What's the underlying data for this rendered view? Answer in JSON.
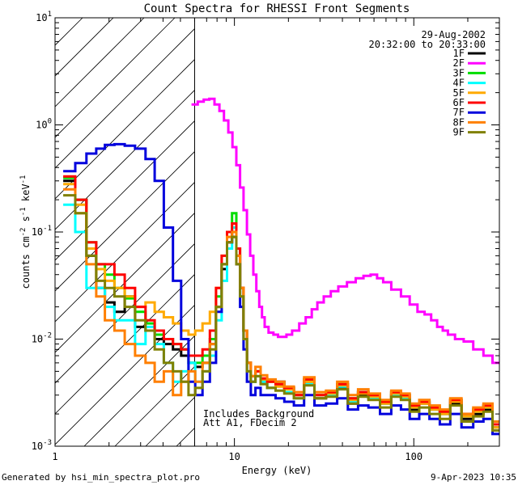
{
  "chart_data": {
    "type": "line",
    "title": "Count Spectra for RHESSI Front Segments",
    "xlabel": "Energy (keV)",
    "ylabel": "counts cm^-2 s^-1 keV^-1",
    "ylabel_parts": {
      "base": "counts cm",
      "exp1": "-2",
      "mid1": " s",
      "exp2": "-1",
      "mid2": " keV",
      "exp3": "-1"
    },
    "x_scale": "log",
    "y_scale": "log",
    "xlim": [
      1,
      300
    ],
    "ylim": [
      0.001,
      10
    ],
    "x_tick_labels": [
      "1",
      "10",
      "100"
    ],
    "y_tick_labels": [
      {
        "base": "10",
        "exp": "-3"
      },
      {
        "base": "10",
        "exp": "-2"
      },
      {
        "base": "10",
        "exp": "-1"
      },
      {
        "base": "10",
        "exp": "0"
      },
      {
        "base": "10",
        "exp": "1"
      }
    ],
    "date": "29-Aug-2002",
    "time_range": "20:32:00 to 20:33:00",
    "annotation_lines": [
      "Includes Background",
      "Att A1, FDecim 2"
    ],
    "hatched_below_keV": 6,
    "footer_left": "Generated by hsi_min_spectra_plot.pro",
    "footer_right": "9-Apr-2023 10:35",
    "legend_placement": "top-right",
    "series": [
      {
        "name": "1F",
        "color": "#000000",
        "x": [
          1.2,
          1.4,
          1.6,
          1.8,
          2.0,
          2.3,
          2.6,
          3.0,
          3.4,
          3.8,
          4.3,
          4.8,
          5.3,
          5.8,
          6.3,
          7.0,
          7.6,
          8.2,
          8.8,
          9.4,
          10.0,
          10.5,
          11.0,
          11.5,
          12.0,
          12.7,
          13.5,
          14.5,
          16,
          18,
          20,
          23,
          26,
          30,
          35,
          40,
          46,
          52,
          60,
          70,
          80,
          90,
          100,
          115,
          130,
          150,
          170,
          200,
          230,
          260,
          290
        ],
        "y": [
          0.3,
          0.2,
          0.06,
          0.03,
          0.022,
          0.018,
          0.025,
          0.013,
          0.012,
          0.01,
          0.009,
          0.008,
          0.007,
          0.006,
          0.0055,
          0.006,
          0.009,
          0.02,
          0.045,
          0.08,
          0.09,
          0.06,
          0.03,
          0.012,
          0.006,
          0.004,
          0.005,
          0.004,
          0.0035,
          0.004,
          0.0035,
          0.003,
          0.004,
          0.0028,
          0.003,
          0.0035,
          0.0025,
          0.003,
          0.0028,
          0.0025,
          0.003,
          0.0028,
          0.0022,
          0.0025,
          0.0022,
          0.002,
          0.0025,
          0.0018,
          0.002,
          0.0022,
          0.0015
        ]
      },
      {
        "name": "2F",
        "color": "#ff00ff",
        "x": [
          6.0,
          6.5,
          7.0,
          7.5,
          8.0,
          8.5,
          9.0,
          9.5,
          10.0,
          10.5,
          11.0,
          11.5,
          12.0,
          12.5,
          13.0,
          13.5,
          14.0,
          14.5,
          15.0,
          16.0,
          17.0,
          18.0,
          19.0,
          20.0,
          22,
          24,
          26,
          28,
          30,
          33,
          36,
          40,
          45,
          50,
          55,
          60,
          65,
          70,
          80,
          90,
          100,
          110,
          120,
          130,
          140,
          150,
          160,
          180,
          200,
          230,
          260,
          290
        ],
        "y": [
          1.55,
          1.65,
          1.72,
          1.75,
          1.55,
          1.35,
          1.1,
          0.85,
          0.62,
          0.42,
          0.26,
          0.16,
          0.095,
          0.06,
          0.04,
          0.028,
          0.02,
          0.016,
          0.013,
          0.0115,
          0.011,
          0.0105,
          0.0105,
          0.011,
          0.012,
          0.014,
          0.016,
          0.019,
          0.022,
          0.025,
          0.028,
          0.031,
          0.034,
          0.037,
          0.039,
          0.04,
          0.037,
          0.034,
          0.029,
          0.025,
          0.021,
          0.018,
          0.017,
          0.015,
          0.013,
          0.012,
          0.011,
          0.01,
          0.0095,
          0.008,
          0.007,
          0.006
        ]
      },
      {
        "name": "3F",
        "color": "#00dd00",
        "x": [
          1.2,
          1.4,
          1.6,
          1.8,
          2.0,
          2.3,
          2.6,
          3.0,
          3.4,
          3.8,
          4.3,
          4.8,
          5.3,
          5.8,
          6.3,
          7.0,
          7.6,
          8.2,
          8.8,
          9.4,
          10.0,
          10.5,
          11.0,
          11.5,
          12.0,
          12.7,
          13.5,
          14.5,
          16,
          18,
          20,
          23,
          26,
          30,
          35,
          40,
          46,
          52,
          60,
          70,
          80,
          90,
          100,
          115,
          130,
          150,
          170,
          200,
          230,
          260,
          290
        ],
        "y": [
          0.32,
          0.2,
          0.08,
          0.05,
          0.04,
          0.03,
          0.024,
          0.018,
          0.014,
          0.011,
          0.01,
          0.009,
          0.008,
          0.006,
          0.006,
          0.007,
          0.01,
          0.025,
          0.05,
          0.1,
          0.15,
          0.07,
          0.03,
          0.012,
          0.006,
          0.0045,
          0.005,
          0.0042,
          0.004,
          0.0038,
          0.0035,
          0.003,
          0.0042,
          0.003,
          0.0032,
          0.0038,
          0.0028,
          0.0032,
          0.003,
          0.0026,
          0.0032,
          0.003,
          0.0024,
          0.0026,
          0.0023,
          0.0021,
          0.0027,
          0.002,
          0.0022,
          0.0024,
          0.0016
        ]
      },
      {
        "name": "4F",
        "color": "#00ffff",
        "x": [
          1.2,
          1.4,
          1.6,
          1.8,
          2.0,
          2.3,
          2.6,
          3.0,
          3.4,
          3.8,
          4.3,
          4.8,
          5.3,
          5.8,
          6.3,
          7.0,
          7.6,
          8.2,
          8.8,
          9.4,
          10.0,
          10.5,
          11.0,
          11.5,
          12.0,
          12.7,
          13.5,
          14.5,
          16,
          18,
          20,
          23,
          26,
          30,
          35,
          40,
          46,
          52,
          60,
          70,
          80,
          90,
          100,
          115,
          130,
          150,
          170,
          200,
          230,
          260,
          290
        ],
        "y": [
          0.18,
          0.1,
          0.03,
          0.03,
          0.02,
          0.015,
          0.015,
          0.009,
          0.013,
          0.009,
          0.006,
          0.004,
          0.005,
          0.006,
          0.004,
          0.005,
          0.007,
          0.015,
          0.035,
          0.07,
          0.11,
          0.06,
          0.025,
          0.01,
          0.005,
          0.004,
          0.0045,
          0.004,
          0.0035,
          0.0038,
          0.0032,
          0.0028,
          0.0038,
          0.003,
          0.003,
          0.0036,
          0.0026,
          0.0032,
          0.0028,
          0.0025,
          0.003,
          0.0028,
          0.0023,
          0.0026,
          0.0022,
          0.002,
          0.0026,
          0.0019,
          0.0021,
          0.0023,
          0.0016
        ]
      },
      {
        "name": "5F",
        "color": "#ffaa00",
        "x": [
          1.2,
          1.4,
          1.6,
          1.8,
          2.0,
          2.3,
          2.6,
          3.0,
          3.4,
          3.8,
          4.3,
          4.8,
          5.3,
          5.8,
          6.3,
          7.0,
          7.6,
          8.2,
          8.8,
          9.4,
          10.0,
          10.5,
          11.0,
          11.5,
          12.0,
          12.7,
          13.5,
          14.5,
          16,
          18,
          20,
          23,
          26,
          30,
          35,
          40,
          46,
          52,
          60,
          70,
          80,
          90,
          100,
          115,
          130,
          150,
          170,
          200,
          230,
          260,
          290
        ],
        "y": [
          0.28,
          0.18,
          0.07,
          0.045,
          0.035,
          0.03,
          0.025,
          0.02,
          0.022,
          0.018,
          0.016,
          0.014,
          0.012,
          0.011,
          0.012,
          0.014,
          0.018,
          0.03,
          0.06,
          0.09,
          0.1,
          0.06,
          0.03,
          0.012,
          0.006,
          0.0045,
          0.005,
          0.0042,
          0.004,
          0.0036,
          0.0034,
          0.003,
          0.004,
          0.003,
          0.0031,
          0.0037,
          0.0027,
          0.0031,
          0.0029,
          0.0025,
          0.0031,
          0.0029,
          0.0023,
          0.0025,
          0.0022,
          0.002,
          0.0026,
          0.0019,
          0.0021,
          0.0023,
          0.0015
        ]
      },
      {
        "name": "6F",
        "color": "#ff0000",
        "x": [
          1.2,
          1.4,
          1.6,
          1.8,
          2.0,
          2.3,
          2.6,
          3.0,
          3.4,
          3.8,
          4.3,
          4.8,
          5.3,
          5.8,
          6.3,
          7.0,
          7.6,
          8.2,
          8.8,
          9.4,
          10.0,
          10.5,
          11.0,
          11.5,
          12.0,
          12.7,
          13.5,
          14.5,
          16,
          18,
          20,
          23,
          26,
          30,
          35,
          40,
          46,
          52,
          60,
          70,
          80,
          90,
          100,
          115,
          130,
          150,
          170,
          200,
          230,
          260,
          290
        ],
        "y": [
          0.33,
          0.2,
          0.08,
          0.05,
          0.05,
          0.04,
          0.03,
          0.02,
          0.015,
          0.012,
          0.01,
          0.009,
          0.008,
          0.007,
          0.007,
          0.008,
          0.012,
          0.03,
          0.06,
          0.1,
          0.12,
          0.07,
          0.03,
          0.012,
          0.006,
          0.0045,
          0.005,
          0.0043,
          0.004,
          0.0038,
          0.0035,
          0.003,
          0.0042,
          0.003,
          0.0032,
          0.0038,
          0.0028,
          0.0032,
          0.003,
          0.0026,
          0.0032,
          0.003,
          0.0024,
          0.0026,
          0.0023,
          0.0021,
          0.0027,
          0.002,
          0.0022,
          0.0024,
          0.0016
        ]
      },
      {
        "name": "7F",
        "color": "#0000dd",
        "x": [
          1.2,
          1.4,
          1.6,
          1.8,
          2.0,
          2.3,
          2.6,
          3.0,
          3.4,
          3.8,
          4.3,
          4.8,
          5.3,
          5.8,
          6.3,
          7.0,
          7.6,
          8.2,
          8.8,
          9.4,
          10.0,
          10.5,
          11.0,
          11.5,
          12.0,
          12.7,
          13.5,
          14.5,
          16,
          18,
          20,
          23,
          26,
          30,
          35,
          40,
          46,
          52,
          60,
          70,
          80,
          90,
          100,
          115,
          130,
          150,
          170,
          200,
          230,
          260,
          290
        ],
        "y": [
          0.37,
          0.44,
          0.54,
          0.6,
          0.65,
          0.66,
          0.64,
          0.6,
          0.48,
          0.3,
          0.11,
          0.035,
          0.01,
          0.004,
          0.003,
          0.004,
          0.006,
          0.018,
          0.05,
          0.08,
          0.1,
          0.05,
          0.02,
          0.008,
          0.004,
          0.003,
          0.0035,
          0.003,
          0.003,
          0.0028,
          0.0026,
          0.0024,
          0.003,
          0.0024,
          0.0025,
          0.0028,
          0.0022,
          0.0024,
          0.0023,
          0.002,
          0.0024,
          0.0022,
          0.0018,
          0.002,
          0.0018,
          0.0016,
          0.002,
          0.0015,
          0.0017,
          0.0018,
          0.0013
        ]
      },
      {
        "name": "8F",
        "color": "#ff7f00",
        "x": [
          1.2,
          1.4,
          1.6,
          1.8,
          2.0,
          2.3,
          2.6,
          3.0,
          3.4,
          3.8,
          4.3,
          4.8,
          5.3,
          5.8,
          6.3,
          7.0,
          7.6,
          8.2,
          8.8,
          9.4,
          10.0,
          10.5,
          11.0,
          11.5,
          12.0,
          12.7,
          13.5,
          14.5,
          16,
          18,
          20,
          23,
          26,
          30,
          35,
          40,
          46,
          52,
          60,
          70,
          80,
          90,
          100,
          115,
          130,
          150,
          170,
          200,
          230,
          260,
          290
        ],
        "y": [
          0.25,
          0.15,
          0.05,
          0.025,
          0.015,
          0.012,
          0.009,
          0.007,
          0.006,
          0.004,
          0.005,
          0.003,
          0.004,
          0.005,
          0.004,
          0.006,
          0.009,
          0.02,
          0.05,
          0.09,
          0.1,
          0.06,
          0.03,
          0.012,
          0.006,
          0.0045,
          0.0055,
          0.0046,
          0.0042,
          0.004,
          0.0036,
          0.0032,
          0.0044,
          0.0032,
          0.0033,
          0.004,
          0.003,
          0.0034,
          0.0031,
          0.0027,
          0.0033,
          0.0031,
          0.0025,
          0.0027,
          0.0024,
          0.0022,
          0.0028,
          0.002,
          0.0023,
          0.0025,
          0.0017
        ]
      },
      {
        "name": "9F",
        "color": "#808000",
        "x": [
          1.2,
          1.4,
          1.6,
          1.8,
          2.0,
          2.3,
          2.6,
          3.0,
          3.4,
          3.8,
          4.3,
          4.8,
          5.3,
          5.8,
          6.3,
          7.0,
          7.6,
          8.2,
          8.8,
          9.4,
          10.0,
          10.5,
          11.0,
          11.5,
          12.0,
          12.7,
          13.5,
          14.5,
          16,
          18,
          20,
          23,
          26,
          30,
          35,
          40,
          46,
          52,
          60,
          70,
          80,
          90,
          100,
          115,
          130,
          150,
          170,
          200,
          230,
          260,
          290
        ],
        "y": [
          0.22,
          0.15,
          0.06,
          0.035,
          0.03,
          0.025,
          0.02,
          0.015,
          0.012,
          0.008,
          0.006,
          0.005,
          0.004,
          0.003,
          0.0035,
          0.005,
          0.008,
          0.02,
          0.05,
          0.08,
          0.09,
          0.05,
          0.025,
          0.01,
          0.005,
          0.004,
          0.0045,
          0.0038,
          0.0035,
          0.0033,
          0.0031,
          0.0028,
          0.0037,
          0.0028,
          0.0029,
          0.0034,
          0.0025,
          0.0029,
          0.0027,
          0.0023,
          0.0029,
          0.0027,
          0.0021,
          0.0023,
          0.002,
          0.0018,
          0.0024,
          0.0017,
          0.0019,
          0.0021,
          0.0014
        ]
      }
    ]
  }
}
